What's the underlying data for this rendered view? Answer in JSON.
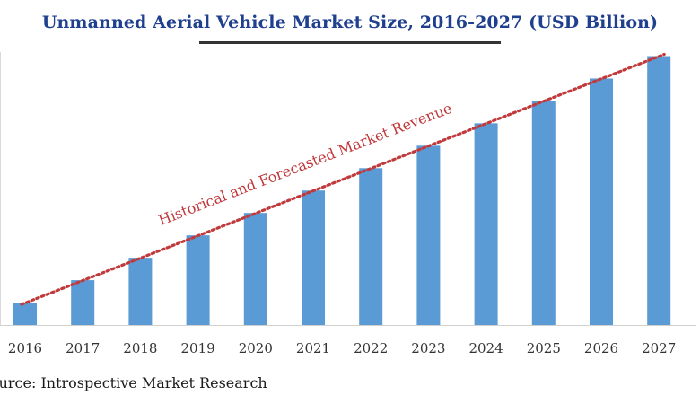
{
  "chart_data": {
    "type": "bar",
    "title": "Unmanned Aerial Vehicle Market Size, 2016-2027 (USD Billion)",
    "categories": [
      "2016",
      "2017",
      "2018",
      "2019",
      "2020",
      "2021",
      "2022",
      "2023",
      "2024",
      "2025",
      "2026",
      "2027"
    ],
    "values": [
      1.0,
      2.0,
      3.0,
      4.0,
      5.0,
      6.0,
      7.0,
      8.0,
      9.0,
      10.0,
      11.0,
      12.0
    ],
    "ylim": [
      0,
      12.5
    ],
    "xlabel": "",
    "ylabel": "",
    "grid": false,
    "bar_color": "#5b9bd5",
    "trendline": {
      "label": "Historical and Forecasted Market Revenue",
      "color": "#c0393b",
      "style": "dotted"
    }
  },
  "source": "Source: Introspective Market Research"
}
